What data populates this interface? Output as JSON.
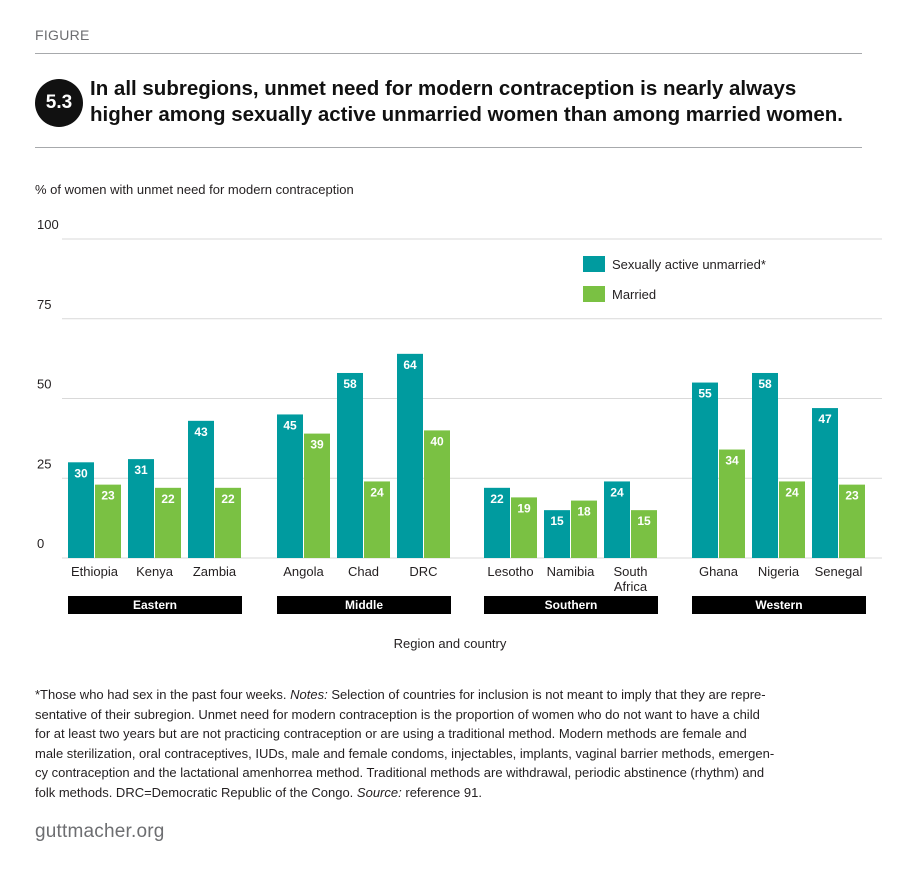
{
  "figure_label": "FIGURE",
  "figure_number": "5.3",
  "title_lines": [
    "In all subregions, unmet need for modern contraception is nearly always",
    "higher among sexually active unmarried women than among married women."
  ],
  "footnote": {
    "star_text": "*Those who had sex in the past four weeks.",
    "notes_label": "Notes:",
    "line1_rest": "Selection of countries for inclusion is not meant to imply that they are repre-",
    "line2": "sentative of their subregion. Unmet need for modern contraception is the proportion of women who do not want to have a child",
    "line3": "for at least two years but are not practicing contraception or are using a traditional method. Modern methods are female and",
    "line4": "male sterilization, oral contraceptives, IUDs, male and female condoms, injectables, implants, vaginal barrier methods, emergen-",
    "line5": "cy contraception and the lactational amenhorrea method. Traditional methods are withdrawal, periodic abstinence (rhythm) and",
    "line6_pre": "folk methods. DRC=Democratic Republic of the Congo.",
    "source_label": "Source:",
    "source_text": "reference 91."
  },
  "brand": "guttmacher.org",
  "colors": {
    "unmarried": "#009b9f",
    "married": "#7ac143",
    "region_bar": "#000000",
    "grid": "#d9d9d9"
  },
  "chart_data": {
    "type": "bar",
    "ylabel": "% of women with unmet need for modern contraception",
    "xlabel": "Region and country",
    "ylim": [
      0,
      100
    ],
    "yticks": [
      0,
      25,
      50,
      75,
      100
    ],
    "grid": true,
    "legend_position": "top-right",
    "series": [
      {
        "name": "Sexually active unmarried*",
        "color": "#009b9f"
      },
      {
        "name": "Married",
        "color": "#7ac143"
      }
    ],
    "groups": [
      {
        "region": "Eastern",
        "countries": [
          {
            "name": "Ethiopia",
            "unmarried": 30,
            "married": 23
          },
          {
            "name": "Kenya",
            "unmarried": 31,
            "married": 22
          },
          {
            "name": "Zambia",
            "unmarried": 43,
            "married": 22
          }
        ]
      },
      {
        "region": "Middle",
        "countries": [
          {
            "name": "Angola",
            "unmarried": 45,
            "married": 39
          },
          {
            "name": "Chad",
            "unmarried": 58,
            "married": 24
          },
          {
            "name": "DRC",
            "unmarried": 64,
            "married": 40
          }
        ]
      },
      {
        "region": "Southern",
        "countries": [
          {
            "name": "Lesotho",
            "unmarried": 22,
            "married": 19
          },
          {
            "name": "Namibia",
            "unmarried": 15,
            "married": 18
          },
          {
            "name": "South Africa",
            "name_lines": [
              "South",
              "Africa"
            ],
            "unmarried": 24,
            "married": 15
          }
        ]
      },
      {
        "region": "Western",
        "countries": [
          {
            "name": "Ghana",
            "unmarried": 55,
            "married": 34
          },
          {
            "name": "Nigeria",
            "unmarried": 58,
            "married": 24
          },
          {
            "name": "Senegal",
            "unmarried": 47,
            "married": 23
          }
        ]
      }
    ]
  }
}
